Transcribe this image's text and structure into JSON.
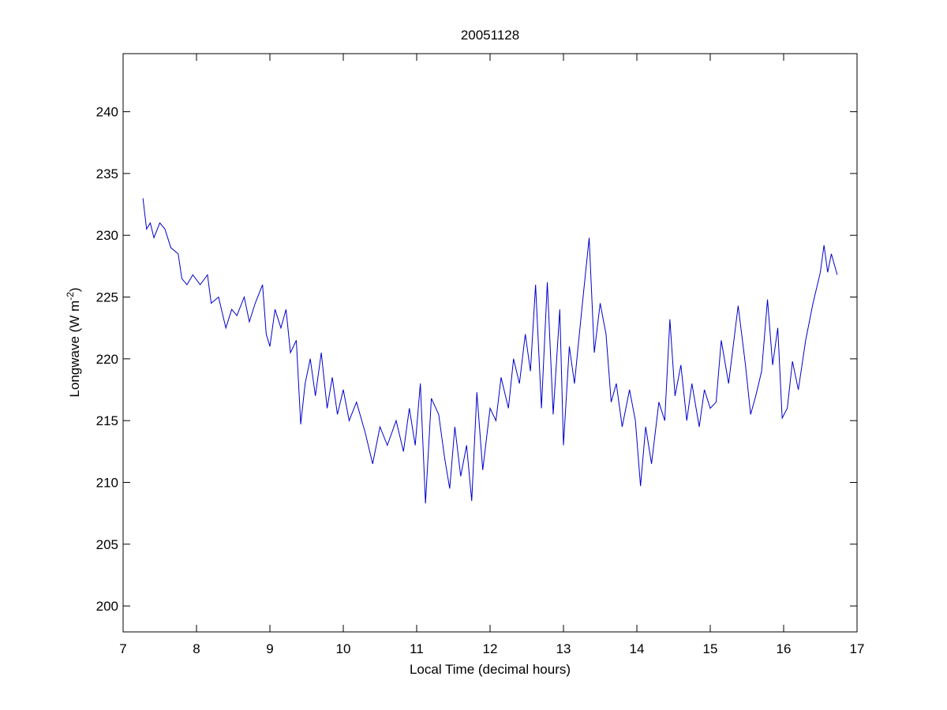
{
  "chart_data": {
    "type": "line",
    "title": "20051128",
    "x_label": "Local Time (decimal hours)",
    "y_label": [
      "Longwave (W m",
      "-2",
      ")"
    ],
    "xlim": [
      7,
      17
    ],
    "ylim": [
      197.9,
      244.7
    ],
    "xticks": [
      7,
      8,
      9,
      10,
      11,
      12,
      13,
      14,
      15,
      16,
      17
    ],
    "yticks": [
      200,
      205,
      210,
      215,
      220,
      225,
      230,
      235,
      240
    ],
    "grid": false,
    "series": [
      {
        "color": "#0000cc",
        "x": [
          7.27,
          7.32,
          7.37,
          7.42,
          7.5,
          7.57,
          7.65,
          7.75,
          7.8,
          7.87,
          7.95,
          8.05,
          8.15,
          8.2,
          8.3,
          8.4,
          8.48,
          8.55,
          8.65,
          8.72,
          8.8,
          8.9,
          8.95,
          9.0,
          9.07,
          9.15,
          9.22,
          9.28,
          9.36,
          9.42,
          9.48,
          9.55,
          9.62,
          9.7,
          9.78,
          9.85,
          9.92,
          10.0,
          10.08,
          10.18,
          10.3,
          10.4,
          10.5,
          10.6,
          10.72,
          10.82,
          10.9,
          10.98,
          11.05,
          11.12,
          11.2,
          11.3,
          11.38,
          11.45,
          11.52,
          11.6,
          11.68,
          11.75,
          11.82,
          11.9,
          12.0,
          12.08,
          12.15,
          12.25,
          12.32,
          12.4,
          12.48,
          12.55,
          12.62,
          12.7,
          12.78,
          12.86,
          12.95,
          13.0,
          13.08,
          13.15,
          13.25,
          13.35,
          13.42,
          13.5,
          13.58,
          13.65,
          13.72,
          13.8,
          13.9,
          13.98,
          14.05,
          14.12,
          14.2,
          14.3,
          14.38,
          14.45,
          14.52,
          14.6,
          14.68,
          14.75,
          14.85,
          14.92,
          15.0,
          15.08,
          15.15,
          15.25,
          15.38,
          15.48,
          15.55,
          15.62,
          15.7,
          15.78,
          15.85,
          15.92,
          15.98,
          16.05,
          16.12,
          16.2,
          16.3,
          16.4,
          16.5,
          16.55,
          16.6,
          16.65,
          16.73
        ],
        "values": [
          233,
          230.5,
          231,
          229.8,
          231,
          230.5,
          229,
          228.5,
          226.5,
          226,
          226.8,
          226,
          226.8,
          224.5,
          225,
          222.5,
          224,
          223.5,
          225,
          223,
          224.5,
          226,
          222,
          221,
          224,
          222.5,
          224,
          220.5,
          221.5,
          214.7,
          218,
          220,
          217,
          220.5,
          216,
          218.5,
          215.5,
          217.5,
          215,
          216.5,
          214,
          211.5,
          214.5,
          213,
          215,
          212.5,
          216,
          213,
          218,
          208.3,
          216.8,
          215.5,
          212,
          209.5,
          214.5,
          210.5,
          213,
          208.5,
          217.3,
          211,
          216,
          215,
          218.5,
          216,
          220,
          218,
          222,
          219,
          226,
          216,
          226.2,
          215.5,
          224,
          213,
          221,
          218,
          224,
          229.8,
          220.5,
          224.5,
          222,
          216.5,
          218,
          214.5,
          217.5,
          215,
          209.7,
          214.5,
          211.5,
          216.5,
          215,
          223.2,
          217,
          219.5,
          215,
          218,
          214.5,
          217.5,
          216,
          216.5,
          221.5,
          218,
          224.3,
          219.5,
          215.5,
          217,
          219,
          224.8,
          219.5,
          222.5,
          215.2,
          216,
          219.8,
          217.5,
          221.5,
          224.5,
          227,
          229.2,
          227,
          228.5,
          226.8
        ]
      }
    ]
  }
}
